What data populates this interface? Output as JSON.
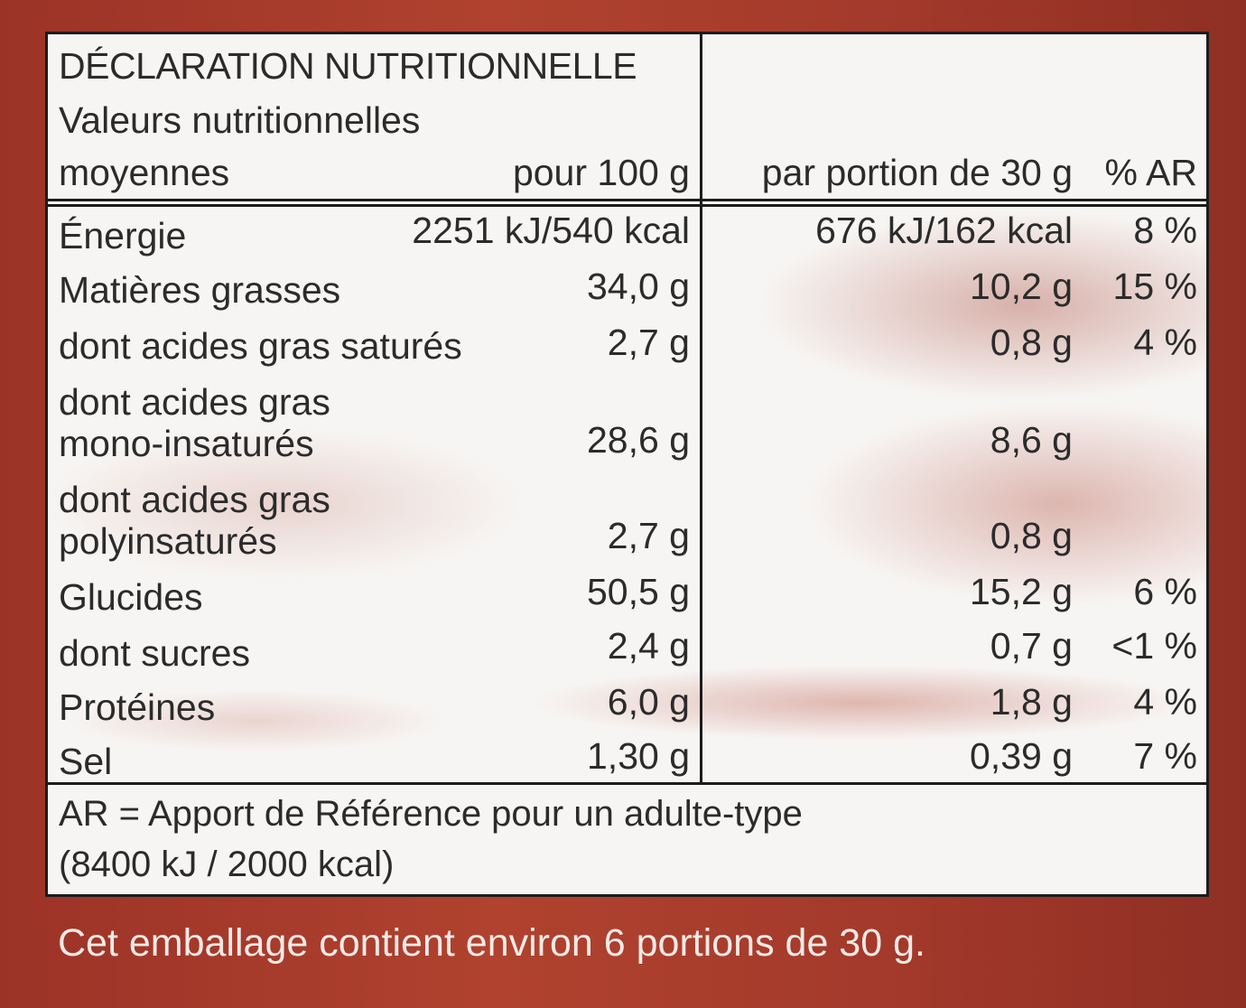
{
  "header": {
    "title": "DÉCLARATION NUTRITIONNELLE",
    "subtitle_line1": "Valeurs nutritionnelles",
    "subtitle_line2": "moyennes",
    "col_per100": "pour 100 g",
    "col_portion": "par portion de 30 g",
    "col_ar": "% AR"
  },
  "rows": [
    {
      "label": [
        "Énergie"
      ],
      "per100": "2251 kJ/540 kcal",
      "portion": "676 kJ/162 kcal",
      "ar": "8 %"
    },
    {
      "label": [
        "Matières grasses"
      ],
      "per100": "34,0 g",
      "portion": "10,2 g",
      "ar": "15 %"
    },
    {
      "label": [
        "dont acides gras saturés"
      ],
      "per100": "2,7 g",
      "portion": "0,8 g",
      "ar": "4 %"
    },
    {
      "label": [
        "dont acides gras",
        "mono-insaturés"
      ],
      "per100": "28,6 g",
      "portion": "8,6 g",
      "ar": ""
    },
    {
      "label": [
        "dont acides gras",
        "polyinsaturés"
      ],
      "per100": "2,7 g",
      "portion": "0,8 g",
      "ar": ""
    },
    {
      "label": [
        "Glucides"
      ],
      "per100": "50,5 g",
      "portion": "15,2 g",
      "ar": "6 %"
    },
    {
      "label": [
        "dont sucres"
      ],
      "per100": "2,4 g",
      "portion": "0,7 g",
      "ar": "<1 %"
    },
    {
      "label": [
        "Protéines"
      ],
      "per100": "6,0 g",
      "portion": "1,8 g",
      "ar": "4 %"
    },
    {
      "label": [
        "Sel"
      ],
      "per100": "1,30 g",
      "portion": "0,39 g",
      "ar": "7 %"
    }
  ],
  "footnote": {
    "line1": "AR = Apport de Référence pour un adulte-type",
    "line2": "(8400 kJ / 2000 kcal)"
  },
  "package_note": "Cet emballage contient environ 6 portions de 30 g.",
  "colors": {
    "background": "#a8392c",
    "label": "#f7f5f3",
    "border": "#1c1c1c"
  }
}
